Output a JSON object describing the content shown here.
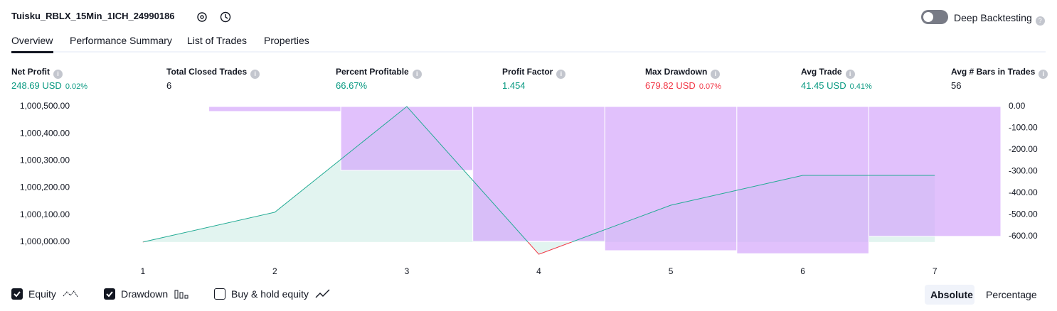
{
  "header": {
    "title": "Tuisku_RBLX_15Min_1ICH_24990186",
    "toggle": "Deep Backtesting"
  },
  "tabs": [
    "Overview",
    "Performance Summary",
    "List of Trades",
    "Properties"
  ],
  "metrics": [
    {
      "label": "Net Profit",
      "value": "248.69 USD",
      "percent": "0.02%",
      "color": "#089981"
    },
    {
      "label": "Total Closed Trades",
      "value": "6",
      "color": "#131722"
    },
    {
      "label": "Percent Profitable",
      "value": "66.67%",
      "color": "#089981"
    },
    {
      "label": "Profit Factor",
      "value": "1.454",
      "color": "#089981"
    },
    {
      "label": "Max Drawdown",
      "value": "679.82 USD",
      "percent": "0.07%",
      "color": "#f23645"
    },
    {
      "label": "Avg Trade",
      "value": "41.45 USD",
      "percent": "0.41%",
      "color": "#089981"
    },
    {
      "label": "Avg # Bars in Trades",
      "value": "56",
      "color": "#131722"
    }
  ],
  "chart_data": {
    "type": "line",
    "x": [
      1,
      2,
      3,
      4,
      5,
      6,
      7
    ],
    "xlim": [
      0.5,
      7.5
    ],
    "xticks": [
      1,
      2,
      3,
      4,
      5,
      6,
      7
    ],
    "ylim": [
      999950,
      1000500
    ],
    "yticks": [
      {
        "value": 1000000,
        "label": "1,000,000.00"
      },
      {
        "value": 1000100,
        "label": "1,000,100.00"
      },
      {
        "value": 1000200,
        "label": "1,000,200.00"
      },
      {
        "value": 1000300,
        "label": "1,000,300.00"
      },
      {
        "value": 1000400,
        "label": "1,000,400.00"
      },
      {
        "value": 1000500,
        "label": "1,000,500.00"
      }
    ],
    "y2lim": [
      -689,
      0
    ],
    "y2ticks": [
      {
        "value": 0,
        "label": "0.00"
      },
      {
        "value": -100,
        "label": "-100.00"
      },
      {
        "value": -200,
        "label": "-200.00"
      },
      {
        "value": -300,
        "label": "-300.00"
      },
      {
        "value": -400,
        "label": "-400.00"
      },
      {
        "value": -500,
        "label": "-500.00"
      },
      {
        "value": -600,
        "label": "-600.00"
      }
    ],
    "series": [
      {
        "name": "Equity",
        "color": "#22ab94",
        "values": [
          1000000,
          1000110,
          1000500,
          999955,
          1000136,
          1000246,
          1000246
        ]
      },
      {
        "name": "Drawdown",
        "type": "bar",
        "axis": "y2",
        "color": "#d4a6fb",
        "values": [
          0,
          -23,
          -295,
          -623,
          -666,
          -680,
          -600
        ]
      }
    ],
    "legend_extra": "Buy & hold equity",
    "modes": [
      "Absolute",
      "Percentage"
    ]
  }
}
